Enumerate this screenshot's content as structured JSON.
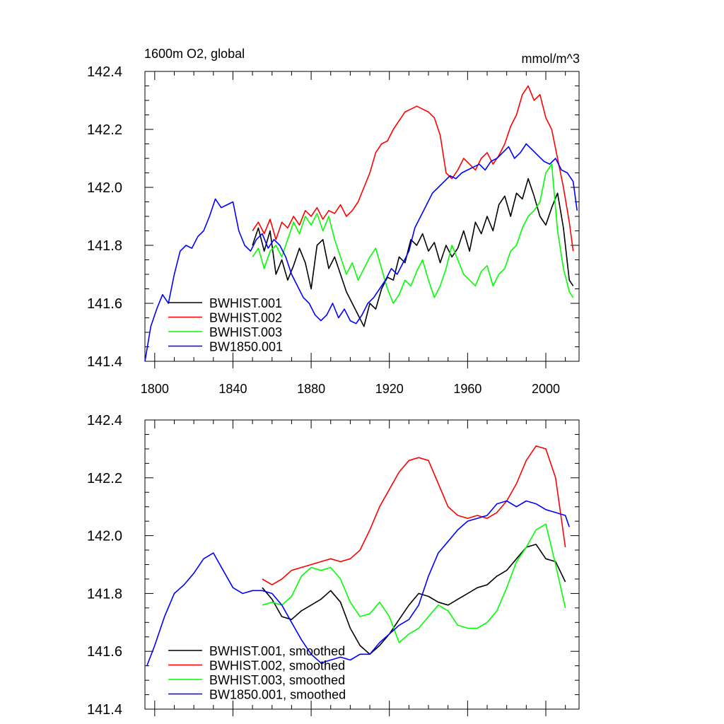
{
  "colors": {
    "black": "#000000",
    "red": "#ff0000",
    "green": "#00ff00",
    "blue": "#0000ff"
  },
  "chart_data": [
    {
      "type": "line",
      "title_left": "1600m O2, global",
      "title_right": "mmol/m^3",
      "xlim": [
        1795,
        2017
      ],
      "ylim": [
        141.4,
        142.4
      ],
      "xticks": [
        1800,
        1840,
        1880,
        1920,
        1960,
        2000
      ],
      "yticks": [
        141.4,
        141.6,
        141.8,
        142.0,
        142.2,
        142.4
      ],
      "xtick_labels": [
        "1800",
        "1840",
        "1880",
        "1920",
        "1960",
        "2000"
      ],
      "ytick_labels": [
        "141.4",
        "141.6",
        "141.8",
        "142.0",
        "142.2",
        "142.4"
      ],
      "legend": "lower-left",
      "series": [
        {
          "name": "BWHIST.001",
          "color": "#000000",
          "x": [
            1850,
            1853,
            1856,
            1859,
            1862,
            1865,
            1868,
            1871,
            1874,
            1877,
            1880,
            1883,
            1886,
            1889,
            1892,
            1895,
            1898,
            1901,
            1904,
            1907,
            1910,
            1913,
            1916,
            1919,
            1922,
            1925,
            1928,
            1931,
            1934,
            1937,
            1940,
            1943,
            1946,
            1949,
            1952,
            1955,
            1958,
            1961,
            1964,
            1967,
            1970,
            1973,
            1976,
            1979,
            1982,
            1985,
            1988,
            1991,
            1994,
            1997,
            2000,
            2003,
            2006,
            2009,
            2012,
            2014
          ],
          "y": [
            141.8,
            141.86,
            141.78,
            141.85,
            141.7,
            141.75,
            141.68,
            141.73,
            141.79,
            141.74,
            141.65,
            141.8,
            141.82,
            141.72,
            141.76,
            141.7,
            141.64,
            141.6,
            141.56,
            141.52,
            141.6,
            141.58,
            141.65,
            141.69,
            141.68,
            141.76,
            141.74,
            141.82,
            141.8,
            141.84,
            141.78,
            141.81,
            141.74,
            141.8,
            141.76,
            141.79,
            141.85,
            141.78,
            141.88,
            141.84,
            141.9,
            141.85,
            141.94,
            141.97,
            141.9,
            141.98,
            141.96,
            142.03,
            141.97,
            141.9,
            141.87,
            141.93,
            141.98,
            141.86,
            141.68,
            141.66
          ]
        },
        {
          "name": "BWHIST.002",
          "color": "#ff0000",
          "x": [
            1850,
            1853,
            1856,
            1859,
            1862,
            1865,
            1868,
            1871,
            1874,
            1877,
            1880,
            1883,
            1886,
            1889,
            1892,
            1895,
            1898,
            1901,
            1904,
            1907,
            1910,
            1913,
            1916,
            1919,
            1922,
            1925,
            1928,
            1931,
            1934,
            1937,
            1940,
            1943,
            1946,
            1949,
            1952,
            1955,
            1958,
            1961,
            1964,
            1967,
            1970,
            1973,
            1976,
            1979,
            1982,
            1985,
            1988,
            1991,
            1994,
            1997,
            2000,
            2003,
            2006,
            2009,
            2012,
            2014
          ],
          "y": [
            141.85,
            141.88,
            141.84,
            141.89,
            141.82,
            141.88,
            141.86,
            141.9,
            141.87,
            141.92,
            141.9,
            141.93,
            141.89,
            141.92,
            141.91,
            141.94,
            141.9,
            141.92,
            141.95,
            142.0,
            142.05,
            142.12,
            142.15,
            142.16,
            142.2,
            142.23,
            142.26,
            142.27,
            142.28,
            142.27,
            142.26,
            142.24,
            142.18,
            142.05,
            142.03,
            142.06,
            142.1,
            142.08,
            142.06,
            142.1,
            142.12,
            142.08,
            142.11,
            142.15,
            142.21,
            142.25,
            142.32,
            142.35,
            142.3,
            142.32,
            142.24,
            142.2,
            142.1,
            142.0,
            141.88,
            141.78
          ]
        },
        {
          "name": "BWHIST.003",
          "color": "#00ff00",
          "x": [
            1850,
            1853,
            1856,
            1859,
            1862,
            1865,
            1868,
            1871,
            1874,
            1877,
            1880,
            1883,
            1886,
            1889,
            1892,
            1895,
            1898,
            1901,
            1904,
            1907,
            1910,
            1913,
            1916,
            1919,
            1922,
            1925,
            1928,
            1931,
            1934,
            1937,
            1940,
            1943,
            1946,
            1949,
            1952,
            1955,
            1958,
            1961,
            1964,
            1967,
            1970,
            1973,
            1976,
            1979,
            1982,
            1985,
            1988,
            1991,
            1994,
            1997,
            2000,
            2003,
            2006,
            2009,
            2012,
            2014
          ],
          "y": [
            141.76,
            141.79,
            141.72,
            141.78,
            141.8,
            141.76,
            141.82,
            141.88,
            141.84,
            141.9,
            141.87,
            141.91,
            141.85,
            141.9,
            141.82,
            141.76,
            141.7,
            141.74,
            141.68,
            141.72,
            141.76,
            141.79,
            141.72,
            141.65,
            141.6,
            141.63,
            141.68,
            141.66,
            141.71,
            141.75,
            141.68,
            141.62,
            141.66,
            141.72,
            141.8,
            141.75,
            141.7,
            141.68,
            141.66,
            141.71,
            141.73,
            141.66,
            141.7,
            141.72,
            141.78,
            141.8,
            141.86,
            141.9,
            141.92,
            141.95,
            142.05,
            142.08,
            141.85,
            141.72,
            141.64,
            141.62
          ]
        },
        {
          "name": "BW1850.001",
          "color": "#0000ff",
          "x": [
            1795,
            1798,
            1801,
            1804,
            1807,
            1810,
            1813,
            1816,
            1819,
            1822,
            1825,
            1828,
            1831,
            1834,
            1837,
            1840,
            1843,
            1846,
            1849,
            1852,
            1855,
            1858,
            1861,
            1864,
            1867,
            1870,
            1873,
            1876,
            1879,
            1882,
            1885,
            1888,
            1891,
            1894,
            1897,
            1900,
            1903,
            1906,
            1909,
            1912,
            1915,
            1918,
            1921,
            1924,
            1927,
            1930,
            1933,
            1936,
            1939,
            1942,
            1945,
            1948,
            1951,
            1954,
            1957,
            1960,
            1963,
            1966,
            1969,
            1972,
            1975,
            1978,
            1981,
            1984,
            1987,
            1990,
            1993,
            1996,
            1999,
            2002,
            2005,
            2008,
            2011,
            2014,
            2016
          ],
          "y": [
            141.4,
            141.52,
            141.58,
            141.63,
            141.6,
            141.7,
            141.78,
            141.8,
            141.79,
            141.83,
            141.85,
            141.9,
            141.96,
            141.93,
            141.94,
            141.95,
            141.85,
            141.8,
            141.78,
            141.82,
            141.84,
            141.79,
            141.82,
            141.8,
            141.76,
            141.7,
            141.66,
            141.62,
            141.6,
            141.56,
            141.54,
            141.56,
            141.6,
            141.55,
            141.58,
            141.54,
            141.53,
            141.56,
            141.6,
            141.62,
            141.65,
            141.68,
            141.72,
            141.7,
            141.74,
            141.78,
            141.86,
            141.9,
            141.94,
            141.98,
            142.0,
            142.02,
            142.04,
            142.03,
            142.05,
            142.06,
            142.07,
            142.08,
            142.06,
            142.09,
            142.1,
            142.12,
            142.14,
            142.1,
            142.12,
            142.15,
            142.13,
            142.11,
            142.09,
            142.08,
            142.1,
            142.06,
            142.05,
            142.02,
            141.92
          ]
        }
      ]
    },
    {
      "type": "line",
      "xlim": [
        1795,
        2017
      ],
      "ylim": [
        141.4,
        142.4
      ],
      "xticks": [
        1800,
        1840,
        1880,
        1920,
        1960,
        2000
      ],
      "yticks": [
        141.4,
        141.6,
        141.8,
        142.0,
        142.2,
        142.4
      ],
      "ytick_labels": [
        "141.4",
        "141.6",
        "141.8",
        "142.0",
        "142.2",
        "142.4"
      ],
      "legend": "lower-left",
      "series": [
        {
          "name": "BWHIST.001, smoothed",
          "color": "#000000",
          "x": [
            1855,
            1860,
            1865,
            1870,
            1875,
            1880,
            1885,
            1890,
            1895,
            1900,
            1905,
            1910,
            1915,
            1920,
            1925,
            1930,
            1935,
            1940,
            1945,
            1950,
            1955,
            1960,
            1965,
            1970,
            1975,
            1980,
            1985,
            1990,
            1995,
            2000,
            2005,
            2010
          ],
          "y": [
            141.82,
            141.78,
            141.72,
            141.71,
            141.74,
            141.76,
            141.78,
            141.81,
            141.77,
            141.68,
            141.62,
            141.59,
            141.62,
            141.66,
            141.71,
            141.76,
            141.8,
            141.79,
            141.77,
            141.76,
            141.78,
            141.8,
            141.82,
            141.83,
            141.86,
            141.88,
            141.92,
            141.96,
            141.97,
            141.92,
            141.91,
            141.84
          ]
        },
        {
          "name": "BWHIST.002, smoothed",
          "color": "#ff0000",
          "x": [
            1855,
            1860,
            1865,
            1870,
            1875,
            1880,
            1885,
            1890,
            1895,
            1900,
            1905,
            1910,
            1915,
            1920,
            1925,
            1930,
            1935,
            1940,
            1945,
            1950,
            1955,
            1960,
            1965,
            1970,
            1975,
            1980,
            1985,
            1990,
            1995,
            2000,
            2005,
            2010
          ],
          "y": [
            141.85,
            141.83,
            141.85,
            141.88,
            141.89,
            141.9,
            141.91,
            141.92,
            141.91,
            141.92,
            141.95,
            142.02,
            142.1,
            142.16,
            142.22,
            142.26,
            142.27,
            142.26,
            142.18,
            142.1,
            142.07,
            142.06,
            142.07,
            142.06,
            142.08,
            142.12,
            142.18,
            142.26,
            142.31,
            142.3,
            142.2,
            141.96
          ]
        },
        {
          "name": "BWHIST.003, smoothed",
          "color": "#00ff00",
          "x": [
            1855,
            1860,
            1865,
            1870,
            1875,
            1880,
            1885,
            1890,
            1895,
            1900,
            1905,
            1910,
            1915,
            1920,
            1925,
            1930,
            1935,
            1940,
            1945,
            1950,
            1955,
            1960,
            1965,
            1970,
            1975,
            1980,
            1985,
            1990,
            1995,
            2000,
            2005,
            2010
          ],
          "y": [
            141.76,
            141.77,
            141.76,
            141.79,
            141.86,
            141.89,
            141.88,
            141.89,
            141.85,
            141.77,
            141.72,
            141.73,
            141.77,
            141.72,
            141.63,
            141.66,
            141.68,
            141.72,
            141.76,
            141.74,
            141.69,
            141.68,
            141.68,
            141.7,
            141.74,
            141.82,
            141.91,
            141.96,
            142.02,
            142.04,
            141.9,
            141.75
          ]
        },
        {
          "name": "BW1850.001, smoothed",
          "color": "#0000ff",
          "x": [
            1796,
            1800,
            1805,
            1810,
            1815,
            1820,
            1825,
            1830,
            1835,
            1840,
            1845,
            1850,
            1855,
            1860,
            1865,
            1870,
            1875,
            1880,
            1885,
            1890,
            1895,
            1900,
            1905,
            1910,
            1915,
            1920,
            1925,
            1930,
            1935,
            1940,
            1945,
            1950,
            1955,
            1960,
            1965,
            1970,
            1975,
            1980,
            1985,
            1990,
            1995,
            2000,
            2005,
            2010,
            2012
          ],
          "y": [
            141.55,
            141.62,
            141.72,
            141.8,
            141.83,
            141.87,
            141.92,
            141.94,
            141.88,
            141.82,
            141.8,
            141.81,
            141.81,
            141.8,
            141.76,
            141.7,
            141.64,
            141.59,
            141.56,
            141.57,
            141.58,
            141.57,
            141.59,
            141.59,
            141.63,
            141.66,
            141.69,
            141.71,
            141.76,
            141.86,
            141.94,
            141.98,
            142.02,
            142.05,
            142.06,
            142.07,
            142.11,
            142.12,
            142.1,
            142.12,
            142.11,
            142.09,
            142.08,
            142.07,
            142.03
          ]
        }
      ]
    }
  ]
}
